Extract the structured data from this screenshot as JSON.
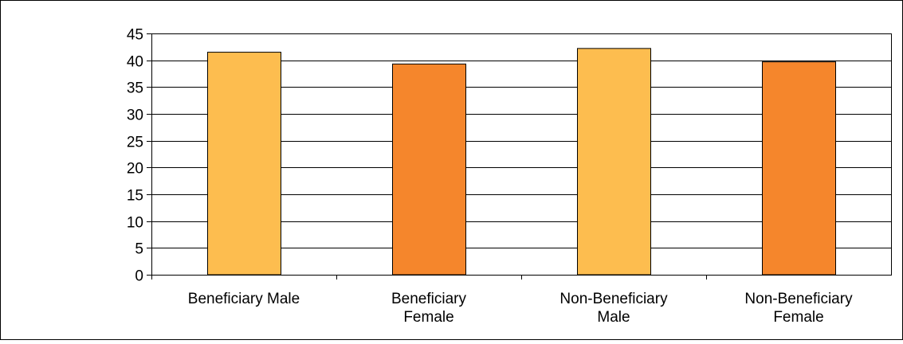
{
  "chart_data": {
    "type": "bar",
    "categories": [
      [
        "Beneficiary Male"
      ],
      [
        "Beneficiary",
        "Female"
      ],
      [
        "Non-Beneficiary",
        "Male"
      ],
      [
        "Non-Beneficiary",
        "Female"
      ]
    ],
    "values": [
      41.5,
      39.3,
      42.2,
      39.7
    ],
    "bar_colors": [
      "#FDBD4F",
      "#F5862C",
      "#FDBD4F",
      "#F5862C"
    ],
    "ylim": [
      0,
      45
    ],
    "yticks": [
      0,
      5,
      10,
      15,
      20,
      25,
      30,
      35,
      40,
      45
    ],
    "grid": true,
    "legend": "none",
    "title": "",
    "xlabel": "",
    "ylabel": ""
  }
}
